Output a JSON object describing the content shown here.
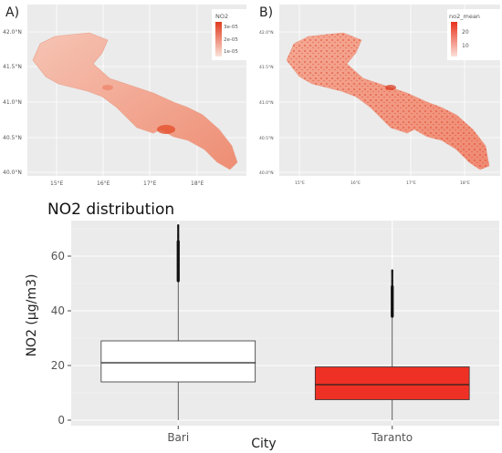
{
  "maps": [
    {
      "panel_label": "A)",
      "legend_title": "NO2",
      "legend_ticks": [
        "3e-05",
        "2e-05",
        "1e-05"
      ],
      "lat_labels": [
        "42.0°N",
        "41.5°N",
        "41.0°N",
        "40.5°N",
        "40.0°N"
      ],
      "lon_labels": [
        "15°E",
        "16°E",
        "17°E",
        "18°E"
      ],
      "colors": {
        "low": "#fbe3d9",
        "high": "#e03a1e"
      }
    },
    {
      "panel_label": "B)",
      "legend_title": "no2_mean",
      "legend_ticks": [
        "20",
        "10"
      ],
      "lat_labels": [
        "42.0°N",
        "41.5°N",
        "41.0°N",
        "40.5°N",
        "40.0°N"
      ],
      "lon_labels": [
        "15°E",
        "16°E",
        "17°E",
        "18°E"
      ],
      "colors": {
        "low": "#fbe0d8",
        "high": "#e8321c"
      }
    }
  ],
  "chart_data": {
    "type": "boxplot",
    "title": "NO2 distribution",
    "xlabel": "City",
    "ylabel": "NO2 (μg/m3)",
    "ylim": [
      -2,
      73
    ],
    "yticks": [
      0,
      20,
      40,
      60
    ],
    "categories": [
      "Bari",
      "Taranto"
    ],
    "boxes": [
      {
        "category": "Bari",
        "min": 0,
        "q1": 14,
        "median": 21,
        "q3": 29,
        "whisker_high": 51,
        "outliers_from": 51,
        "outliers_to": 71.5,
        "fill": "#ffffff"
      },
      {
        "category": "Taranto",
        "min": 0,
        "q1": 7.5,
        "median": 13,
        "q3": 19.5,
        "whisker_high": 38,
        "outliers_from": 38,
        "outliers_to": 55,
        "fill": "#ee3124"
      }
    ],
    "grid": true,
    "panel_bg": "#ebebeb"
  }
}
